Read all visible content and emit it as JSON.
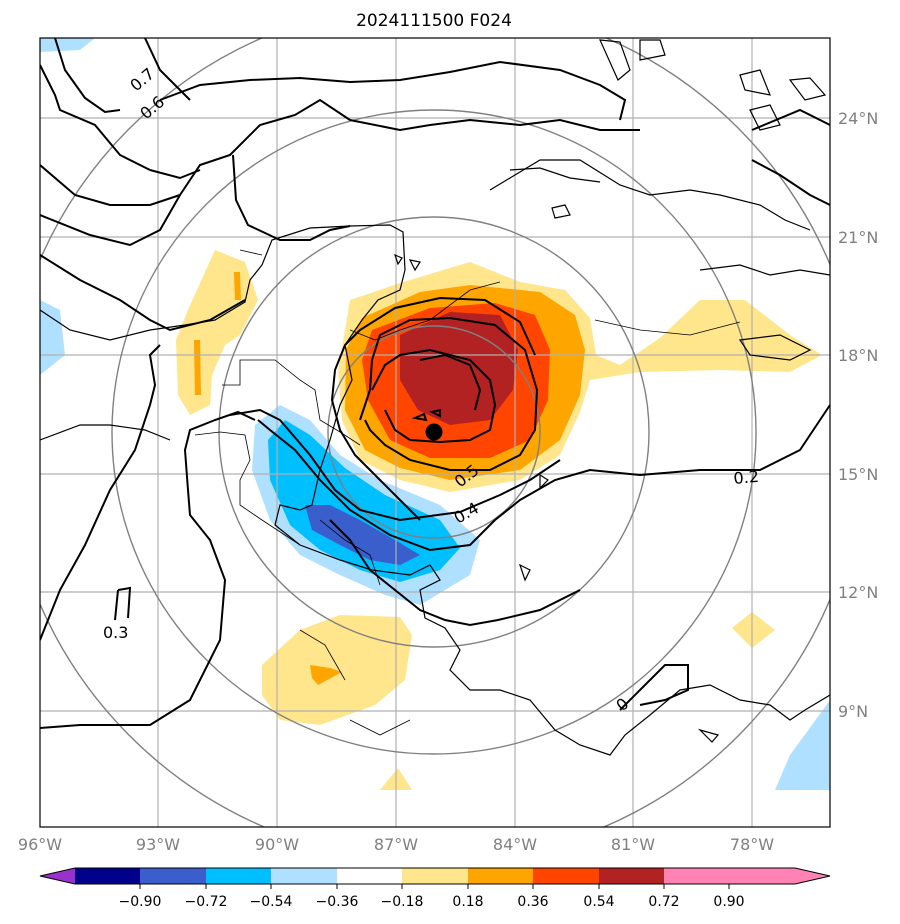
{
  "title": "2024111500 F024",
  "lon_ticks": [
    "96°W",
    "93°W",
    "90°W",
    "87°W",
    "84°W",
    "81°W",
    "78°W"
  ],
  "lat_ticks": [
    "24°N",
    "21°N",
    "18°N",
    "15°N",
    "12°N",
    "9°N"
  ],
  "colorbar": {
    "ticks": [
      "−0.90",
      "−0.72",
      "−0.54",
      "−0.36",
      "−0.18",
      "0.18",
      "0.36",
      "0.54",
      "0.72",
      "0.90"
    ],
    "colors": [
      "#9932cc",
      "#00008b",
      "#3a5fcd",
      "#00bfff",
      "#b0e0ff",
      "#ffffff",
      "#ffe68c",
      "#ffa500",
      "#ff4500",
      "#b22222",
      "#ff82b4"
    ]
  },
  "contour_labels": [
    "0.7",
    "0.6",
    "0.5",
    "0.4",
    "0.3",
    "0.2",
    "0"
  ],
  "colors": {
    "grid": "#b0b0b0",
    "ring": "#808080",
    "tick_text": "#808080"
  }
}
